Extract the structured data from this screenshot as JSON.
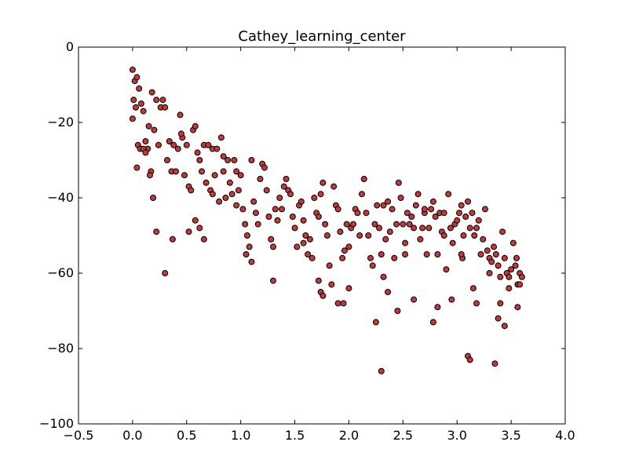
{
  "chart_data": {
    "type": "scatter",
    "title": "Cathey_learning_center",
    "xlabel": "",
    "ylabel": "",
    "xlim": [
      -0.5,
      4.0
    ],
    "ylim": [
      -100,
      0
    ],
    "xticks": [
      -0.5,
      0.0,
      0.5,
      1.0,
      1.5,
      2.0,
      2.5,
      3.0,
      3.5,
      4.0
    ],
    "xtick_labels": [
      "−0.5",
      "0.0",
      "0.5",
      "1.0",
      "1.5",
      "2.0",
      "2.5",
      "3.0",
      "3.5",
      "4.0"
    ],
    "yticks": [
      0,
      -20,
      -40,
      -60,
      -80,
      -100
    ],
    "ytick_labels": [
      "0",
      "−20",
      "−40",
      "−60",
      "−80",
      "−100"
    ],
    "grid": false,
    "marker_color": "#c0393b",
    "marker_edge_color": "#000000",
    "points": [
      [
        0.0,
        -6
      ],
      [
        0.02,
        -9
      ],
      [
        0.04,
        -8
      ],
      [
        0.01,
        -14
      ],
      [
        0.0,
        -19
      ],
      [
        0.03,
        -16
      ],
      [
        0.06,
        -11
      ],
      [
        0.08,
        -15
      ],
      [
        0.05,
        -26
      ],
      [
        0.07,
        -27
      ],
      [
        0.1,
        -17
      ],
      [
        0.12,
        -25
      ],
      [
        0.14,
        -27
      ],
      [
        0.1,
        -27
      ],
      [
        0.04,
        -32
      ],
      [
        0.15,
        -21
      ],
      [
        0.18,
        -12
      ],
      [
        0.2,
        -22
      ],
      [
        0.17,
        -33
      ],
      [
        0.16,
        -34
      ],
      [
        0.19,
        -40
      ],
      [
        0.22,
        -14
      ],
      [
        0.24,
        -26
      ],
      [
        0.26,
        -16
      ],
      [
        0.28,
        -14
      ],
      [
        0.3,
        -16
      ],
      [
        0.22,
        -49
      ],
      [
        0.3,
        -60
      ],
      [
        0.32,
        -30
      ],
      [
        0.34,
        -25
      ],
      [
        0.36,
        -33
      ],
      [
        0.38,
        -26
      ],
      [
        0.4,
        -33
      ],
      [
        0.42,
        -27
      ],
      [
        0.44,
        -18
      ],
      [
        0.46,
        -24
      ],
      [
        0.48,
        -34
      ],
      [
        0.5,
        -26
      ],
      [
        0.52,
        -37
      ],
      [
        0.54,
        -38
      ],
      [
        0.56,
        -22
      ],
      [
        0.58,
        -21
      ],
      [
        0.6,
        -28
      ],
      [
        0.62,
        -30
      ],
      [
        0.37,
        -51
      ],
      [
        0.52,
        -49
      ],
      [
        0.58,
        -46
      ],
      [
        0.62,
        -48
      ],
      [
        0.64,
        -33
      ],
      [
        0.66,
        -26
      ],
      [
        0.68,
        -36
      ],
      [
        0.7,
        -26
      ],
      [
        0.72,
        -38
      ],
      [
        0.74,
        -27
      ],
      [
        0.76,
        -34
      ],
      [
        0.78,
        -27
      ],
      [
        0.8,
        -41
      ],
      [
        0.82,
        -24
      ],
      [
        0.84,
        -29
      ],
      [
        0.86,
        -40
      ],
      [
        0.88,
        -30
      ],
      [
        0.9,
        -36
      ],
      [
        0.92,
        -39
      ],
      [
        0.94,
        -30
      ],
      [
        0.96,
        -42
      ],
      [
        0.98,
        -38
      ],
      [
        1.0,
        -34
      ],
      [
        1.02,
        -43
      ],
      [
        1.04,
        -47
      ],
      [
        1.06,
        -50
      ],
      [
        1.08,
        -53
      ],
      [
        0.66,
        -51
      ],
      [
        0.74,
        -39
      ],
      [
        0.84,
        -33
      ],
      [
        1.1,
        -30
      ],
      [
        1.12,
        -41
      ],
      [
        1.14,
        -44
      ],
      [
        1.16,
        -47
      ],
      [
        1.18,
        -35
      ],
      [
        1.2,
        -31
      ],
      [
        1.22,
        -32
      ],
      [
        1.24,
        -38
      ],
      [
        1.26,
        -45
      ],
      [
        1.28,
        -51
      ],
      [
        1.3,
        -53
      ],
      [
        1.32,
        -43
      ],
      [
        1.34,
        -46
      ],
      [
        1.05,
        -55
      ],
      [
        1.1,
        -57
      ],
      [
        1.3,
        -62
      ],
      [
        1.36,
        -40
      ],
      [
        1.38,
        -43
      ],
      [
        1.4,
        -37
      ],
      [
        1.42,
        -35
      ],
      [
        1.44,
        -38
      ],
      [
        1.46,
        -39
      ],
      [
        1.48,
        -45
      ],
      [
        1.5,
        -48
      ],
      [
        1.52,
        -53
      ],
      [
        1.54,
        -42
      ],
      [
        1.56,
        -41
      ],
      [
        1.58,
        -46
      ],
      [
        1.6,
        -50
      ],
      [
        1.62,
        -55
      ],
      [
        1.64,
        -51
      ],
      [
        1.66,
        -56
      ],
      [
        1.68,
        -40
      ],
      [
        1.7,
        -44
      ],
      [
        1.72,
        -45
      ],
      [
        1.74,
        -39
      ],
      [
        1.76,
        -36
      ],
      [
        1.78,
        -47
      ],
      [
        1.8,
        -50
      ],
      [
        1.82,
        -58
      ],
      [
        1.84,
        -63
      ],
      [
        1.86,
        -37
      ],
      [
        1.88,
        -42
      ],
      [
        1.9,
        -43
      ],
      [
        1.92,
        -49
      ],
      [
        1.94,
        -56
      ],
      [
        1.72,
        -62
      ],
      [
        1.74,
        -65
      ],
      [
        1.76,
        -66
      ],
      [
        1.96,
        -54
      ],
      [
        1.98,
        -47
      ],
      [
        2.0,
        -53
      ],
      [
        2.02,
        -48
      ],
      [
        2.04,
        -47
      ],
      [
        2.06,
        -43
      ],
      [
        2.08,
        -44
      ],
      [
        2.1,
        -50
      ],
      [
        2.12,
        -39
      ],
      [
        2.14,
        -35
      ],
      [
        2.16,
        -44
      ],
      [
        2.18,
        -50
      ],
      [
        1.9,
        -68
      ],
      [
        1.95,
        -68
      ],
      [
        2.0,
        -64
      ],
      [
        2.2,
        -56
      ],
      [
        2.22,
        -58
      ],
      [
        2.24,
        -47
      ],
      [
        2.26,
        -42
      ],
      [
        2.28,
        -48
      ],
      [
        2.3,
        -55
      ],
      [
        2.32,
        -42
      ],
      [
        2.34,
        -51
      ],
      [
        2.36,
        -41
      ],
      [
        2.38,
        -49
      ],
      [
        2.4,
        -43
      ],
      [
        2.42,
        -56
      ],
      [
        2.25,
        -73
      ],
      [
        2.32,
        -61
      ],
      [
        2.36,
        -65
      ],
      [
        2.3,
        -86
      ],
      [
        2.44,
        -47
      ],
      [
        2.46,
        -36
      ],
      [
        2.48,
        -40
      ],
      [
        2.5,
        -47
      ],
      [
        2.52,
        -52
      ],
      [
        2.54,
        -44
      ],
      [
        2.56,
        -47
      ],
      [
        2.58,
        -45
      ],
      [
        2.6,
        -48
      ],
      [
        2.62,
        -42
      ],
      [
        2.64,
        -39
      ],
      [
        2.45,
        -70
      ],
      [
        2.52,
        -55
      ],
      [
        2.6,
        -67
      ],
      [
        2.66,
        -51
      ],
      [
        2.68,
        -48
      ],
      [
        2.7,
        -44
      ],
      [
        2.72,
        -55
      ],
      [
        2.74,
        -48
      ],
      [
        2.76,
        -43
      ],
      [
        2.78,
        -41
      ],
      [
        2.8,
        -45
      ],
      [
        2.82,
        -55
      ],
      [
        2.84,
        -44
      ],
      [
        2.86,
        -49
      ],
      [
        2.88,
        -44
      ],
      [
        2.78,
        -73
      ],
      [
        2.82,
        -69
      ],
      [
        2.9,
        -59
      ],
      [
        2.92,
        -39
      ],
      [
        2.94,
        -48
      ],
      [
        2.96,
        -52
      ],
      [
        2.98,
        -47
      ],
      [
        3.0,
        -46
      ],
      [
        3.02,
        -44
      ],
      [
        3.04,
        -42
      ],
      [
        3.06,
        -50
      ],
      [
        3.08,
        -45
      ],
      [
        3.1,
        -41
      ],
      [
        3.12,
        -48
      ],
      [
        3.14,
        -44
      ],
      [
        2.95,
        -67
      ],
      [
        3.05,
        -56
      ],
      [
        3.1,
        -82
      ],
      [
        3.12,
        -83
      ],
      [
        3.15,
        -64
      ],
      [
        3.16,
        -50
      ],
      [
        3.18,
        -48
      ],
      [
        3.2,
        -46
      ],
      [
        3.22,
        -55
      ],
      [
        3.24,
        -51
      ],
      [
        3.26,
        -43
      ],
      [
        3.28,
        -54
      ],
      [
        3.3,
        -56
      ],
      [
        3.32,
        -57
      ],
      [
        3.34,
        -53
      ],
      [
        3.18,
        -68
      ],
      [
        3.3,
        -60
      ],
      [
        3.35,
        -84
      ],
      [
        3.36,
        -55
      ],
      [
        3.38,
        -58
      ],
      [
        3.4,
        -61
      ],
      [
        3.42,
        -49
      ],
      [
        3.44,
        -56
      ],
      [
        3.46,
        -60
      ],
      [
        3.48,
        -64
      ],
      [
        3.5,
        -59
      ],
      [
        3.52,
        -52
      ],
      [
        3.54,
        -58
      ],
      [
        3.56,
        -63
      ],
      [
        3.58,
        -60
      ],
      [
        3.38,
        -72
      ],
      [
        3.4,
        -68
      ],
      [
        3.44,
        -74
      ],
      [
        3.48,
        -61
      ],
      [
        3.55,
        -56
      ],
      [
        3.56,
        -69
      ],
      [
        3.58,
        -63
      ],
      [
        3.6,
        -61
      ],
      [
        3.04,
        -55
      ],
      [
        2.88,
        -50
      ],
      [
        1.58,
        -52
      ],
      [
        0.96,
        -33
      ],
      [
        0.45,
        -23
      ],
      [
        0.12,
        -28
      ],
      [
        2.7,
        -43
      ]
    ]
  }
}
